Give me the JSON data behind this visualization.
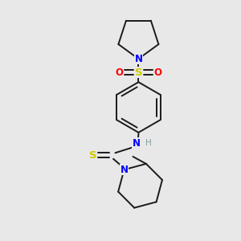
{
  "bg_color": "#e8e8e8",
  "bond_color": "#1a1a1a",
  "N_color": "#0000ff",
  "S_color": "#cccc00",
  "O_color": "#ff0000",
  "H_color": "#7f9f9f",
  "figsize": [
    3.0,
    3.0
  ],
  "dpi": 100,
  "lw": 1.4,
  "fs": 8.5,
  "pyrrC": [
    0.58,
    0.88
  ],
  "r_pyrr": 0.09,
  "benzC": [
    0.58,
    0.53
  ],
  "r_benz": 0.12,
  "pipC": [
    0.44,
    0.22
  ],
  "r_pip": 0.1
}
